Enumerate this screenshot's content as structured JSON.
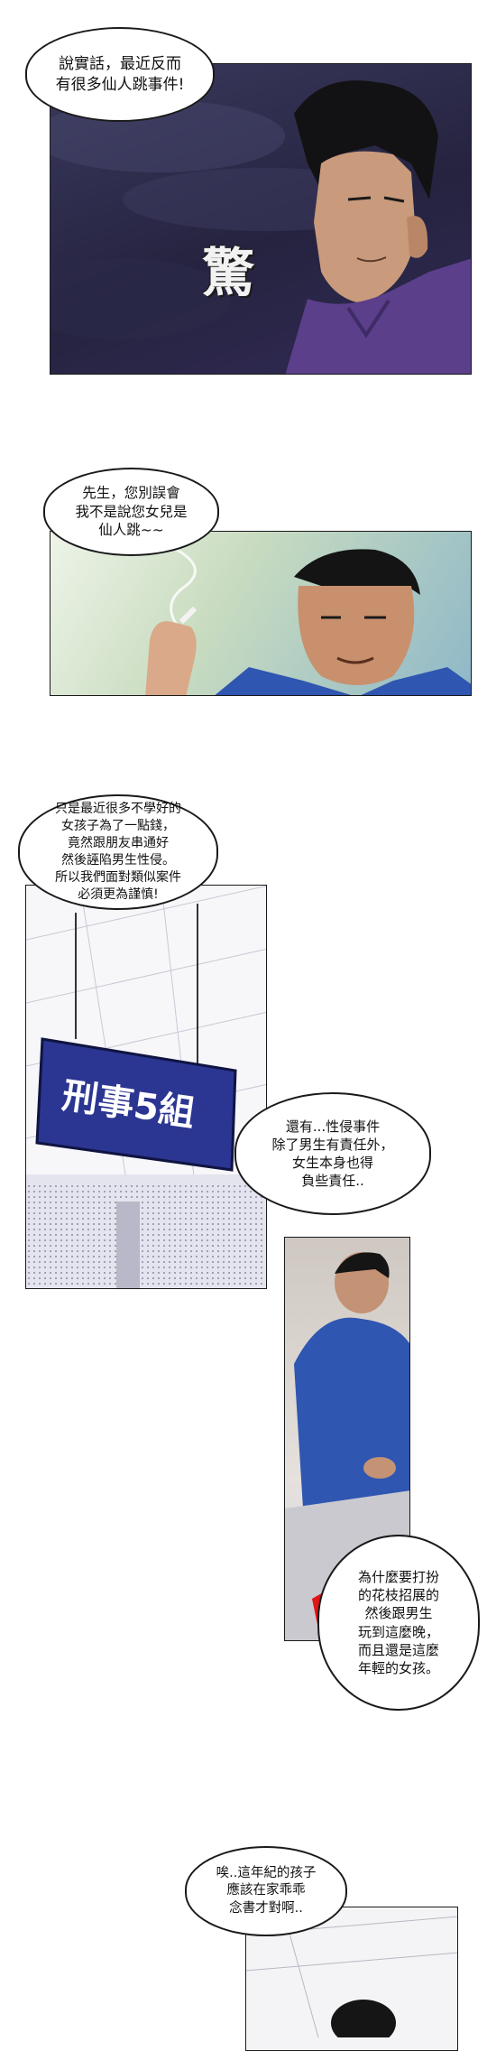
{
  "panels": {
    "p1": {
      "bubble": "說實話，最近反而\n有很多仙人跳事件!",
      "sfx": "驚"
    },
    "p2": {
      "bubble": "先生，您別誤會\n我不是說您女兒是\n仙人跳~~"
    },
    "p3": {
      "bubble": "只是最近很多不學好的\n女孩子為了一點錢，\n竟然跟朋友串通好\n然後誣陷男生性侵。\n所以我們面對類似案件\n必須更為謹慎!",
      "sign": "刑事5組",
      "bubble2": "還有...性侵事件\n除了男生有責任外，\n女生本身也得\n負些責任.."
    },
    "p4": {
      "bubble": "為什麼要打扮\n的花枝招展的\n然後跟男生\n玩到這麼晚，\n而且還是這麼\n年輕的女孩。"
    },
    "p5": {
      "bubble": "唉..這年紀的孩子\n應該在家乖乖\n念書才對啊.."
    }
  },
  "colors": {
    "night_sky": "#2a2848",
    "shirt_purple": "#5b3f8a",
    "sign_blue": "#2b3592",
    "shirt_blue": "#2f56b0",
    "folder_red": "#e01515"
  }
}
